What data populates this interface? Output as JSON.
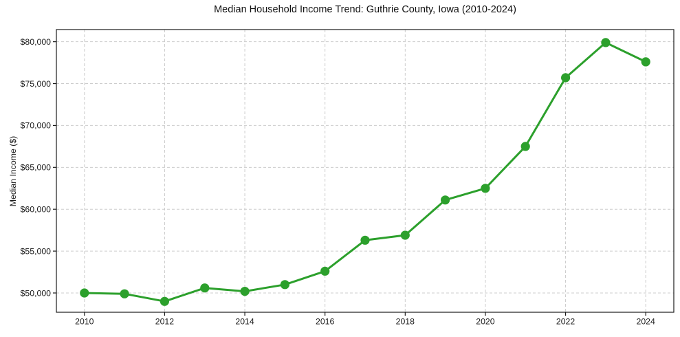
{
  "figure": {
    "background": "#ffffff"
  },
  "chart_data": {
    "type": "line",
    "title": "Median Household Income Trend: Guthrie County, Iowa (2010-2024)",
    "xlabel": "",
    "ylabel": "Median Income ($)",
    "x": [
      2010,
      2011,
      2012,
      2013,
      2014,
      2015,
      2016,
      2017,
      2018,
      2019,
      2020,
      2021,
      2022,
      2023,
      2024
    ],
    "values": [
      50000,
      49900,
      49000,
      50600,
      50200,
      51000,
      52600,
      56300,
      56900,
      61100,
      62500,
      67500,
      75700,
      79900,
      77600
    ],
    "x_ticks": [
      2010,
      2012,
      2014,
      2016,
      2018,
      2020,
      2022,
      2024
    ],
    "x_tick_labels": [
      "2010",
      "2012",
      "2014",
      "2016",
      "2018",
      "2020",
      "2022",
      "2024"
    ],
    "y_ticks": [
      50000,
      55000,
      60000,
      65000,
      70000,
      75000,
      80000
    ],
    "y_tick_labels": [
      "$50,000",
      "$55,000",
      "$60,000",
      "$65,000",
      "$70,000",
      "$75,000",
      "$80,000"
    ],
    "xlim": [
      2009.3,
      2024.7
    ],
    "ylim": [
      47700,
      81450
    ],
    "grid": "dashed-both-axes",
    "legend": "none",
    "colors": {
      "line": "#2ca02c",
      "marker": "#2ca02c",
      "grid": "#cccccc",
      "axis": "#1a1a1a",
      "text": "#1a1a1a"
    }
  }
}
